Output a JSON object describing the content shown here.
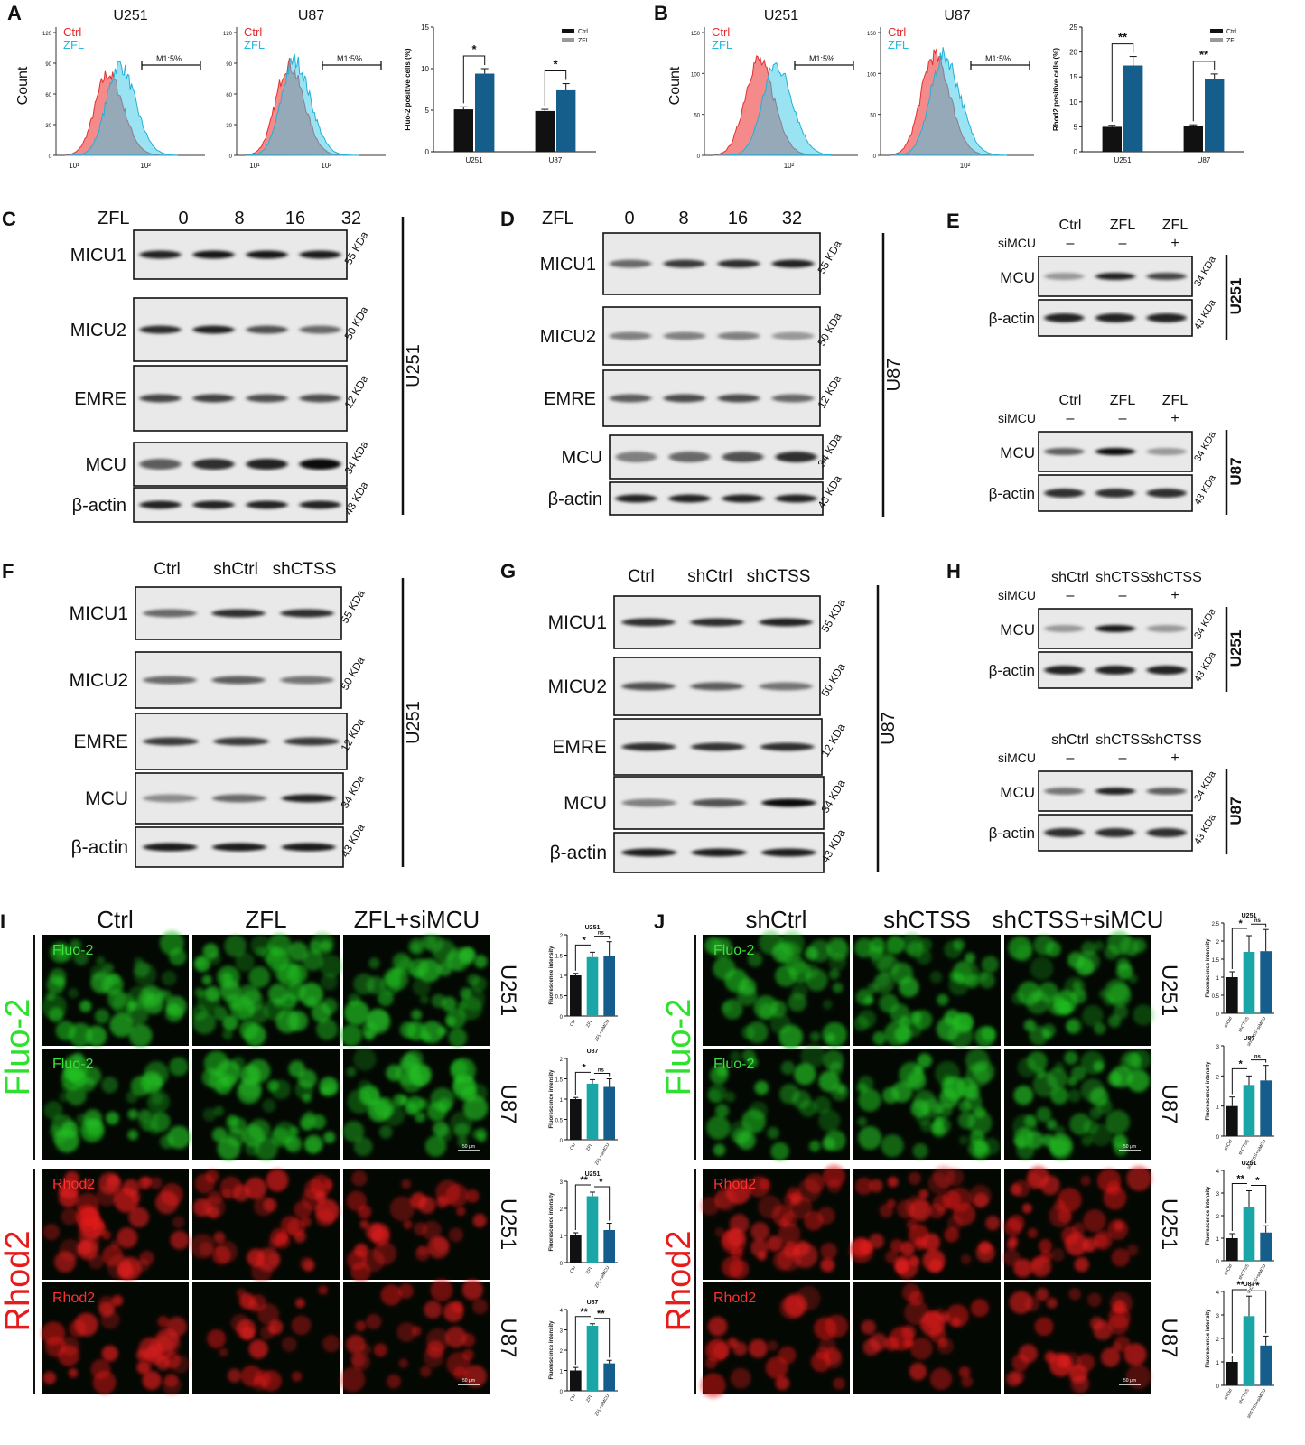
{
  "colors": {
    "ctrl_red": "#f26d6d",
    "zfl_cyan": "#35c8e8",
    "bar_black": "#111111",
    "bar_teal": "#1aa6a6",
    "bar_blue": "#155d8a",
    "green": "#22c022",
    "red": "#e21b1b"
  },
  "panels": {
    "A": {
      "letter": "A",
      "hist_titles": [
        "U251",
        "U87"
      ],
      "legend": [
        "Ctrl",
        "ZFL"
      ],
      "ylabel": "Count",
      "gate": "M1:5%",
      "y_ticks": [
        "120",
        "90",
        "60",
        "30",
        "0"
      ],
      "x_ticks": [
        "10¹",
        "10²"
      ],
      "bar_chart": {
        "ylabel": "Fluo-2 positive cells (%)",
        "categories": [
          "U251",
          "U87"
        ],
        "legend": [
          "Ctrl",
          "ZFL"
        ],
        "y_ticks": [
          "0",
          "5",
          "10",
          "15"
        ],
        "sig": [
          "*",
          "*"
        ]
      }
    },
    "B": {
      "letter": "B",
      "hist_titles": [
        "U251",
        "U87"
      ],
      "legend": [
        "Ctrl",
        "ZFL"
      ],
      "ylabel": "Count",
      "gate": "M1:5%",
      "y_ticks": [
        "150",
        "100",
        "50",
        "0"
      ],
      "x_ticks": [
        "10²"
      ],
      "bar_chart": {
        "ylabel": "Rhod2 positive cells (%)",
        "categories": [
          "U251",
          "U87"
        ],
        "legend": [
          "Ctrl",
          "ZFL"
        ],
        "y_ticks": [
          "0",
          "5",
          "10",
          "15",
          "20",
          "25"
        ],
        "sig": [
          "**",
          "**"
        ]
      }
    },
    "C": {
      "letter": "C",
      "treatment": "ZFL",
      "doses": [
        "0",
        "8",
        "16",
        "32"
      ],
      "cell": "U251",
      "proteins": [
        "MICU1",
        "MICU2",
        "EMRE",
        "MCU",
        "β-actin"
      ],
      "kda": [
        "55 KDa",
        "50 KDa",
        "12 KDa",
        "34 KDa",
        "43 KDa"
      ]
    },
    "D": {
      "letter": "D",
      "treatment": "ZFL",
      "doses": [
        "0",
        "8",
        "16",
        "32"
      ],
      "cell": "U87",
      "proteins": [
        "MICU1",
        "MICU2",
        "EMRE",
        "MCU",
        "β-actin"
      ],
      "kda": [
        "55 KDa",
        "50 KDa",
        "12 KDa",
        "34 KDa",
        "43 KDa"
      ]
    },
    "E": {
      "letter": "E",
      "cols": [
        "Ctrl",
        "ZFL",
        "ZFL"
      ],
      "si_label": "siMCU",
      "si_marks": [
        "–",
        "–",
        "+"
      ],
      "proteins": [
        "MCU",
        "β-actin"
      ],
      "kda": [
        "34 KDa",
        "43 KDa"
      ],
      "cells": [
        "U251",
        "U87"
      ]
    },
    "F": {
      "letter": "F",
      "cols": [
        "Ctrl",
        "shCtrl",
        "shCTSS"
      ],
      "cell": "U251",
      "proteins": [
        "MICU1",
        "MICU2",
        "EMRE",
        "MCU",
        "β-actin"
      ],
      "kda": [
        "55 KDa",
        "50 KDa",
        "12 KDa",
        "34 KDa",
        "43 KDa"
      ]
    },
    "G": {
      "letter": "G",
      "cols": [
        "Ctrl",
        "shCtrl",
        "shCTSS"
      ],
      "cell": "U87",
      "proteins": [
        "MICU1",
        "MICU2",
        "EMRE",
        "MCU",
        "β-actin"
      ],
      "kda": [
        "55 KDa",
        "50 KDa",
        "12 KDa",
        "34 KDa",
        "43 KDa"
      ]
    },
    "H": {
      "letter": "H",
      "cols": [
        "shCtrl",
        "shCTSS",
        "shCTSS"
      ],
      "si_label": "siMCU",
      "si_marks": [
        "–",
        "–",
        "+"
      ],
      "proteins": [
        "MCU",
        "β-actin"
      ],
      "kda": [
        "34 KDa",
        "43 KDa"
      ],
      "cells": [
        "U251",
        "U87"
      ]
    },
    "I": {
      "letter": "I",
      "cols": [
        "Ctrl",
        "ZFL",
        "ZFL+siMCU"
      ],
      "group_labels": [
        "Fluo-2",
        "Rhod2"
      ],
      "row_tags": [
        "Fluo-2",
        "Fluo-2",
        "Rhod2",
        "Rhod2"
      ],
      "cells": [
        "U251",
        "U87",
        "U251",
        "U87"
      ],
      "scale": "50 μm"
    },
    "J": {
      "letter": "J",
      "cols": [
        "shCtrl",
        "shCTSS",
        "shCTSS+siMCU"
      ],
      "group_labels": [
        "Fluo-2",
        "Rhod2"
      ],
      "row_tags": [
        "Fluo-2",
        "Fluo-2",
        "Rhod2",
        "Rhod2"
      ],
      "cells": [
        "U251",
        "U87",
        "U251",
        "U87"
      ],
      "scale": "50 μm"
    }
  },
  "chart_data": [
    {
      "type": "bar",
      "panel": "A",
      "ylabel": "Fluo-2 positive cells (%)",
      "categories": [
        "U251",
        "U87"
      ],
      "ylim": [
        0,
        15
      ],
      "series": [
        {
          "name": "Ctrl",
          "values": [
            5.1,
            4.9
          ],
          "error": [
            0.3,
            0.2
          ]
        },
        {
          "name": "ZFL",
          "values": [
            9.4,
            7.4
          ],
          "error": [
            0.6,
            0.8
          ]
        }
      ]
    },
    {
      "type": "bar",
      "panel": "B",
      "ylabel": "Rhod2 positive cells (%)",
      "categories": [
        "U251",
        "U87"
      ],
      "ylim": [
        0,
        25
      ],
      "series": [
        {
          "name": "Ctrl",
          "values": [
            5.0,
            5.1
          ],
          "error": [
            0.3,
            0.3
          ]
        },
        {
          "name": "ZFL",
          "values": [
            17.3,
            14.6
          ],
          "error": [
            1.8,
            1.0
          ]
        }
      ]
    },
    {
      "type": "bar",
      "panel": "I",
      "title": "U251",
      "ylabel": "Fluorescence intensity",
      "categories": [
        "Ctrl",
        "ZFL",
        "ZFL+siMCU"
      ],
      "ylim": [
        0,
        2
      ],
      "values": [
        1.0,
        1.45,
        1.48
      ],
      "error": [
        0.05,
        0.12,
        0.35
      ],
      "sig": [
        "*",
        "ns"
      ]
    },
    {
      "type": "bar",
      "panel": "I",
      "title": "U87",
      "ylabel": "Fluorescence intensity",
      "categories": [
        "Ctrl",
        "ZFL",
        "ZFL+siMCU"
      ],
      "ylim": [
        0,
        2
      ],
      "values": [
        1.0,
        1.38,
        1.3
      ],
      "error": [
        0.04,
        0.1,
        0.2
      ],
      "sig": [
        "*",
        "ns"
      ]
    },
    {
      "type": "bar",
      "panel": "I",
      "title": "U251",
      "ylabel": "Fluorescence intensity",
      "categories": [
        "Ctrl",
        "ZFL",
        "ZFL+siMCU"
      ],
      "ylim": [
        0,
        3
      ],
      "values": [
        1.0,
        2.45,
        1.2
      ],
      "error": [
        0.1,
        0.15,
        0.25
      ],
      "sig": [
        "**",
        "*"
      ]
    },
    {
      "type": "bar",
      "panel": "I",
      "title": "U87",
      "ylabel": "Fluorescence intensity",
      "categories": [
        "Ctrl",
        "ZFL",
        "ZFL+siMCU"
      ],
      "ylim": [
        0,
        4
      ],
      "values": [
        1.0,
        3.2,
        1.35
      ],
      "error": [
        0.15,
        0.1,
        0.15
      ],
      "sig": [
        "**",
        "**"
      ]
    },
    {
      "type": "bar",
      "panel": "J",
      "title": "U251",
      "ylabel": "Fluorescence intensity",
      "categories": [
        "shCtrl",
        "shCTSS",
        "shCTSS+siMCU"
      ],
      "ylim": [
        0,
        2.5
      ],
      "values": [
        1.0,
        1.7,
        1.72
      ],
      "error": [
        0.15,
        0.45,
        0.6
      ],
      "sig": [
        "*",
        "ns"
      ]
    },
    {
      "type": "bar",
      "panel": "J",
      "title": "U87",
      "ylabel": "Fluorescence intensity",
      "categories": [
        "shCtrl",
        "shCTSS",
        "shCTSS+siMCU"
      ],
      "ylim": [
        0,
        3
      ],
      "values": [
        1.0,
        1.7,
        1.85
      ],
      "error": [
        0.3,
        0.3,
        0.5
      ],
      "sig": [
        "*",
        "ns"
      ]
    },
    {
      "type": "bar",
      "panel": "J",
      "title": "U251",
      "ylabel": "Fluorescence intensity",
      "categories": [
        "shCtrl",
        "shCTSS",
        "shCTSS+siMCU"
      ],
      "ylim": [
        0,
        4
      ],
      "values": [
        1.0,
        2.4,
        1.25
      ],
      "error": [
        0.2,
        0.7,
        0.3
      ],
      "sig": [
        "**",
        "*"
      ]
    },
    {
      "type": "bar",
      "panel": "J",
      "title": "U87",
      "ylabel": "Fluorescence intensity",
      "categories": [
        "shCtrl",
        "shCTSS",
        "shCTSS+siMCU"
      ],
      "ylim": [
        0,
        4
      ],
      "values": [
        1.0,
        2.95,
        1.7
      ],
      "error": [
        0.25,
        0.85,
        0.4
      ],
      "sig": [
        "**",
        "*"
      ]
    }
  ]
}
